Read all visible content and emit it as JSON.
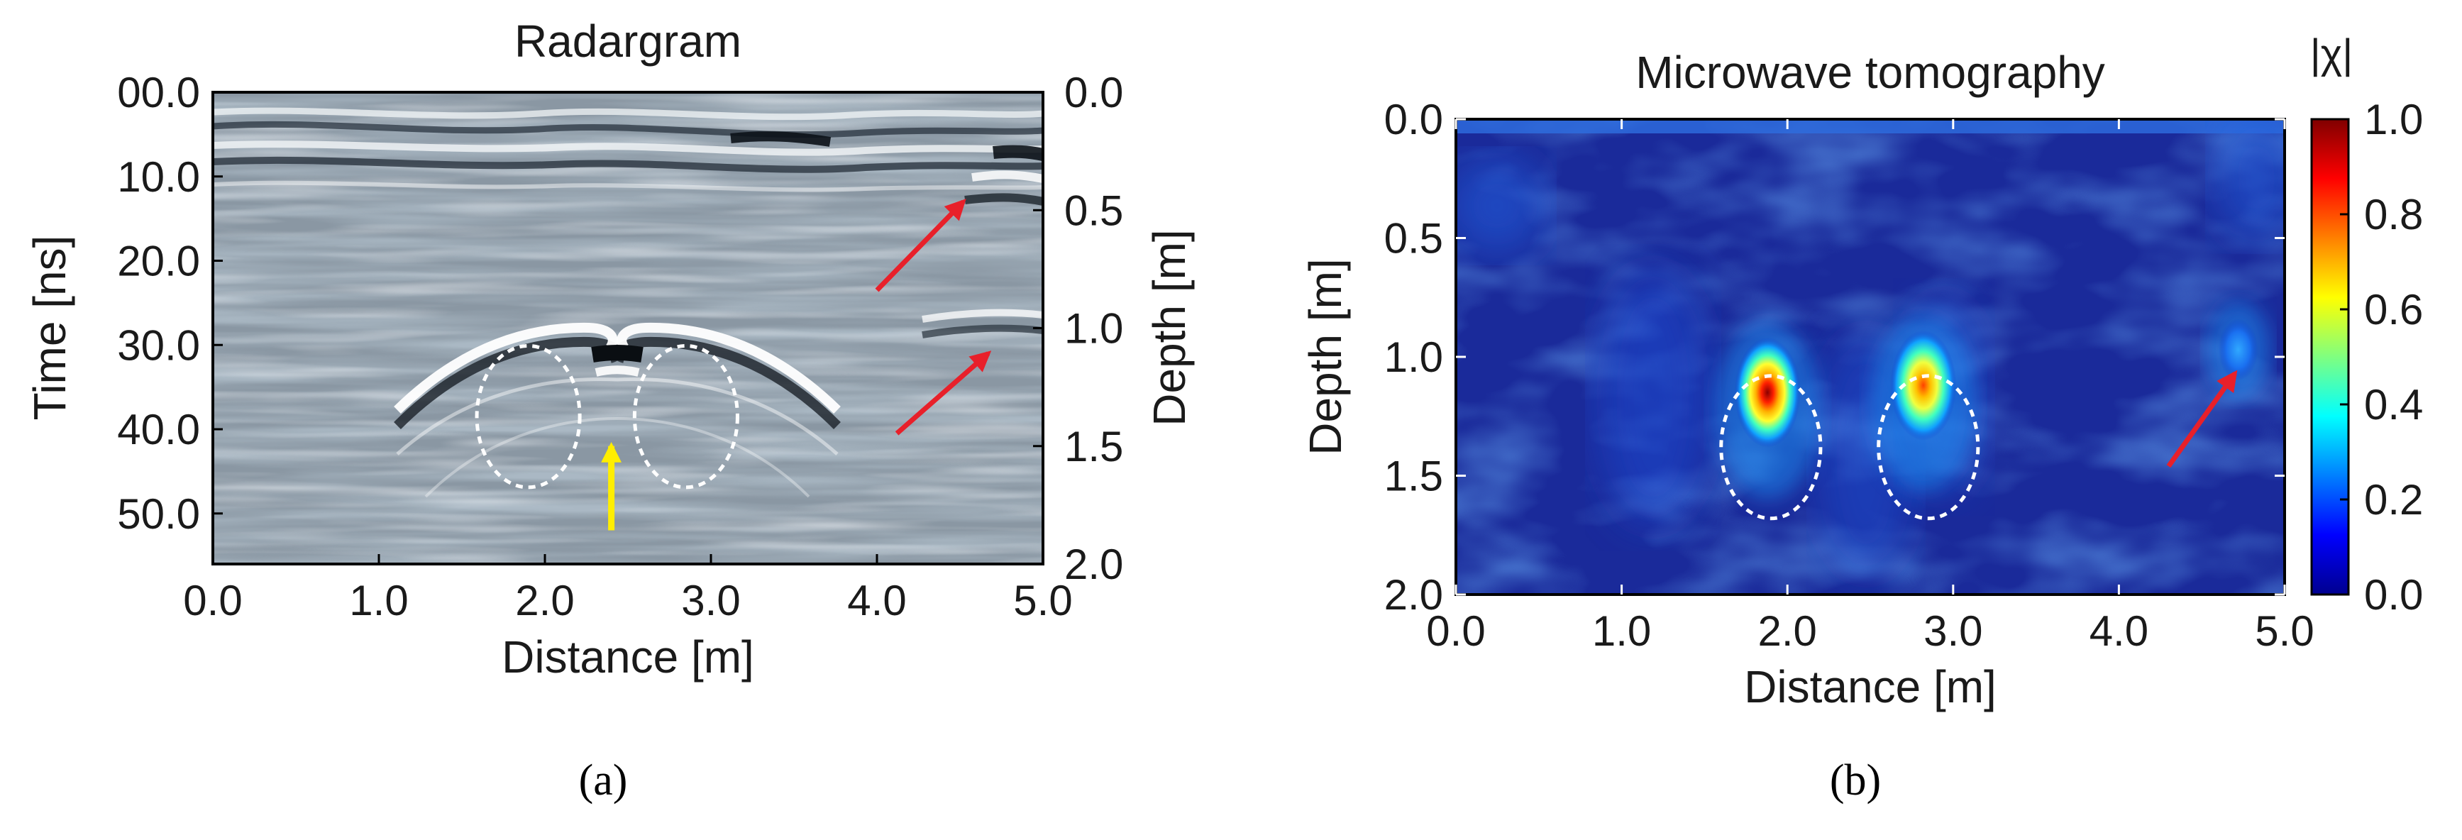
{
  "panels": [
    {
      "id": "a",
      "caption": "(a)",
      "chart_data": {
        "type": "heatmap",
        "title": "Radargram",
        "xlabel": "Distance [m]",
        "ylabel": "Time [ns]",
        "y2label": "Depth [m]",
        "xlim": [
          0.0,
          5.0
        ],
        "ylim": [
          0.0,
          56.0
        ],
        "y2lim": [
          0.0,
          2.0
        ],
        "xticks": [
          "0.0",
          "1.0",
          "2.0",
          "3.0",
          "4.0",
          "5.0"
        ],
        "xtick_values": [
          0,
          1,
          2,
          3,
          4,
          5
        ],
        "yticks": [
          "00.0",
          "10.0",
          "20.0",
          "30.0",
          "40.0",
          "50.0"
        ],
        "ytick_values": [
          0,
          10,
          20,
          30,
          40,
          50
        ],
        "y2ticks": [
          "0.0",
          "0.5",
          "1.0",
          "1.5",
          "2.0"
        ],
        "y2tick_values": [
          0,
          0.5,
          1.0,
          1.5,
          2.0
        ],
        "colormap": "grayscale",
        "hyperbola_apex": {
          "distance": 2.4,
          "time": 33.0
        },
        "annotations": {
          "ellipses": [
            {
              "distance": 1.9,
              "time": 38.5,
              "rx": 0.31,
              "ry": 8.4
            },
            {
              "distance": 2.85,
              "time": 38.5,
              "rx": 0.31,
              "ry": 8.4
            }
          ],
          "yellow_arrow": {
            "distance": 2.4,
            "time_from": 52.0,
            "time_to": 42.0
          },
          "red_arrows": [
            {
              "from": [
                4.0,
                23.5
              ],
              "to": [
                4.52,
                13.0
              ]
            },
            {
              "from": [
                4.12,
                40.5
              ],
              "to": [
                4.67,
                31.0
              ]
            }
          ],
          "colors": {
            "ellipse": "#ffffff",
            "yellow_arrow": "#ffee00",
            "red_arrow": "#e8202a"
          }
        }
      }
    },
    {
      "id": "b",
      "caption": "(b)",
      "chart_data": {
        "type": "heatmap",
        "title": "Microwave tomography",
        "xlabel": "Distance [m]",
        "ylabel": "Depth [m]",
        "colorbar_label": "|χ|",
        "xlim": [
          0.0,
          5.0
        ],
        "ylim": [
          0.0,
          2.0
        ],
        "xticks": [
          "0.0",
          "1.0",
          "2.0",
          "3.0",
          "4.0",
          "5.0"
        ],
        "xtick_values": [
          0,
          1,
          2,
          3,
          4,
          5
        ],
        "yticks": [
          "0.0",
          "0.5",
          "1.0",
          "1.5",
          "2.0"
        ],
        "ytick_values": [
          0,
          0.5,
          1.0,
          1.5,
          2.0
        ],
        "colorbar_ticks": [
          "0.0",
          "0.2",
          "0.4",
          "0.6",
          "0.8",
          "1.0"
        ],
        "colorbar_values": [
          0,
          0.2,
          0.4,
          0.6,
          0.8,
          1.0
        ],
        "colormap": "jet",
        "hotspots": [
          {
            "distance": 1.88,
            "depth": 1.15,
            "value": 1.0
          },
          {
            "distance": 2.82,
            "depth": 1.12,
            "value": 0.78
          },
          {
            "distance": 4.72,
            "depth": 0.97,
            "value": 0.3
          }
        ],
        "annotations": {
          "ellipses": [
            {
              "distance": 1.9,
              "depth": 1.38,
              "rx": 0.3,
              "ry": 0.3
            },
            {
              "distance": 2.85,
              "depth": 1.38,
              "rx": 0.3,
              "ry": 0.3
            }
          ],
          "red_arrows": [
            {
              "from": [
                4.3,
                1.46
              ],
              "to": [
                4.7,
                1.07
              ]
            }
          ],
          "colors": {
            "ellipse": "#ffffff",
            "red_arrow": "#e8202a"
          }
        }
      }
    }
  ]
}
